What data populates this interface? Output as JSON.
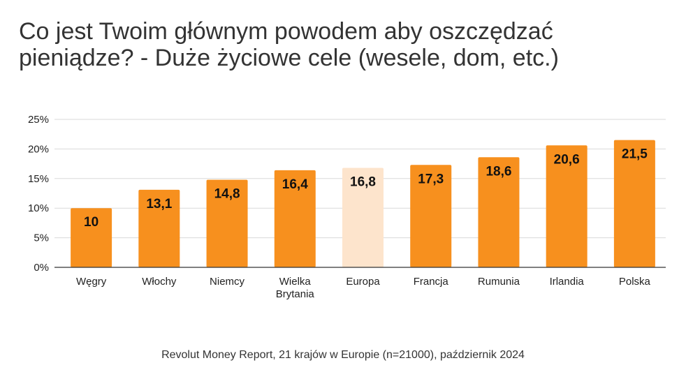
{
  "chart_data": {
    "type": "bar",
    "title_lines": [
      "Co jest Twoim głównym powodem aby oszczędzać",
      "pieniądze? - Duże życiowe cele (wesele, dom, etc.)"
    ],
    "categories": [
      [
        "Węgry"
      ],
      [
        "Włochy"
      ],
      [
        "Niemcy"
      ],
      [
        "Wielka",
        "Brytania"
      ],
      [
        "Europa"
      ],
      [
        "Francja"
      ],
      [
        "Rumunia"
      ],
      [
        "Irlandia"
      ],
      [
        "Polska"
      ]
    ],
    "values": [
      10,
      13.1,
      14.8,
      16.4,
      16.8,
      17.3,
      18.6,
      20.6,
      21.5
    ],
    "data_labels": [
      "10",
      "13,1",
      "14,8",
      "16,4",
      "16,8",
      "17,3",
      "18,6",
      "20,6",
      "21,5"
    ],
    "highlight_index": 4,
    "ylim": [
      0,
      25
    ],
    "yticks": [
      0,
      5,
      10,
      15,
      20,
      25
    ],
    "ytick_labels": [
      "0%",
      "5%",
      "10%",
      "15%",
      "20%",
      "25%"
    ],
    "grid": true,
    "legend": "none",
    "colors": {
      "bar": "#F7901E",
      "highlight": "#FDE4CC",
      "grid": "#D9D9D9",
      "axis": "#333333"
    }
  },
  "footer": "Revolut Money Report, 21 krajów w Europie (n=21000), październik 2024"
}
